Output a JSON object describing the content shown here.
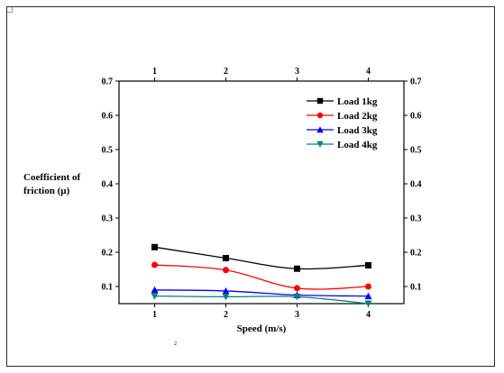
{
  "chart_data": {
    "type": "line",
    "x": [
      1,
      2,
      3,
      4
    ],
    "xlabel": "Speed (m/s)",
    "ylabel": "Coefficient of friction (µ)",
    "ylabel_lines": [
      "Coefficient of",
      "friction (µ)"
    ],
    "xlim": [
      0.5,
      4.5
    ],
    "ylim": [
      0.05,
      0.7
    ],
    "xticks": [
      1,
      2,
      3,
      4
    ],
    "yticks": [
      0.1,
      0.2,
      0.3,
      0.4,
      0.5,
      0.6,
      0.7
    ],
    "top_axis_ticks": [
      1,
      2,
      3,
      4
    ],
    "right_axis_ticks": [
      0.1,
      0.2,
      0.3,
      0.4,
      0.5,
      0.6,
      0.7
    ],
    "grid": false,
    "legend_position": "top-right",
    "series": [
      {
        "name": "Load 1kg",
        "values": [
          0.215,
          0.183,
          0.152,
          0.162
        ],
        "color": "#000000",
        "marker": "square"
      },
      {
        "name": "Load 2kg",
        "values": [
          0.163,
          0.148,
          0.095,
          0.1
        ],
        "color": "#ff0000",
        "marker": "circle"
      },
      {
        "name": "Load 3kg",
        "values": [
          0.09,
          0.087,
          0.075,
          0.072
        ],
        "color": "#0000ff",
        "marker": "triangle-up"
      },
      {
        "name": "Load 4kg",
        "values": [
          0.072,
          0.07,
          0.07,
          0.05
        ],
        "color": "#008080",
        "marker": "triangle-down"
      }
    ]
  },
  "footnote": "2"
}
